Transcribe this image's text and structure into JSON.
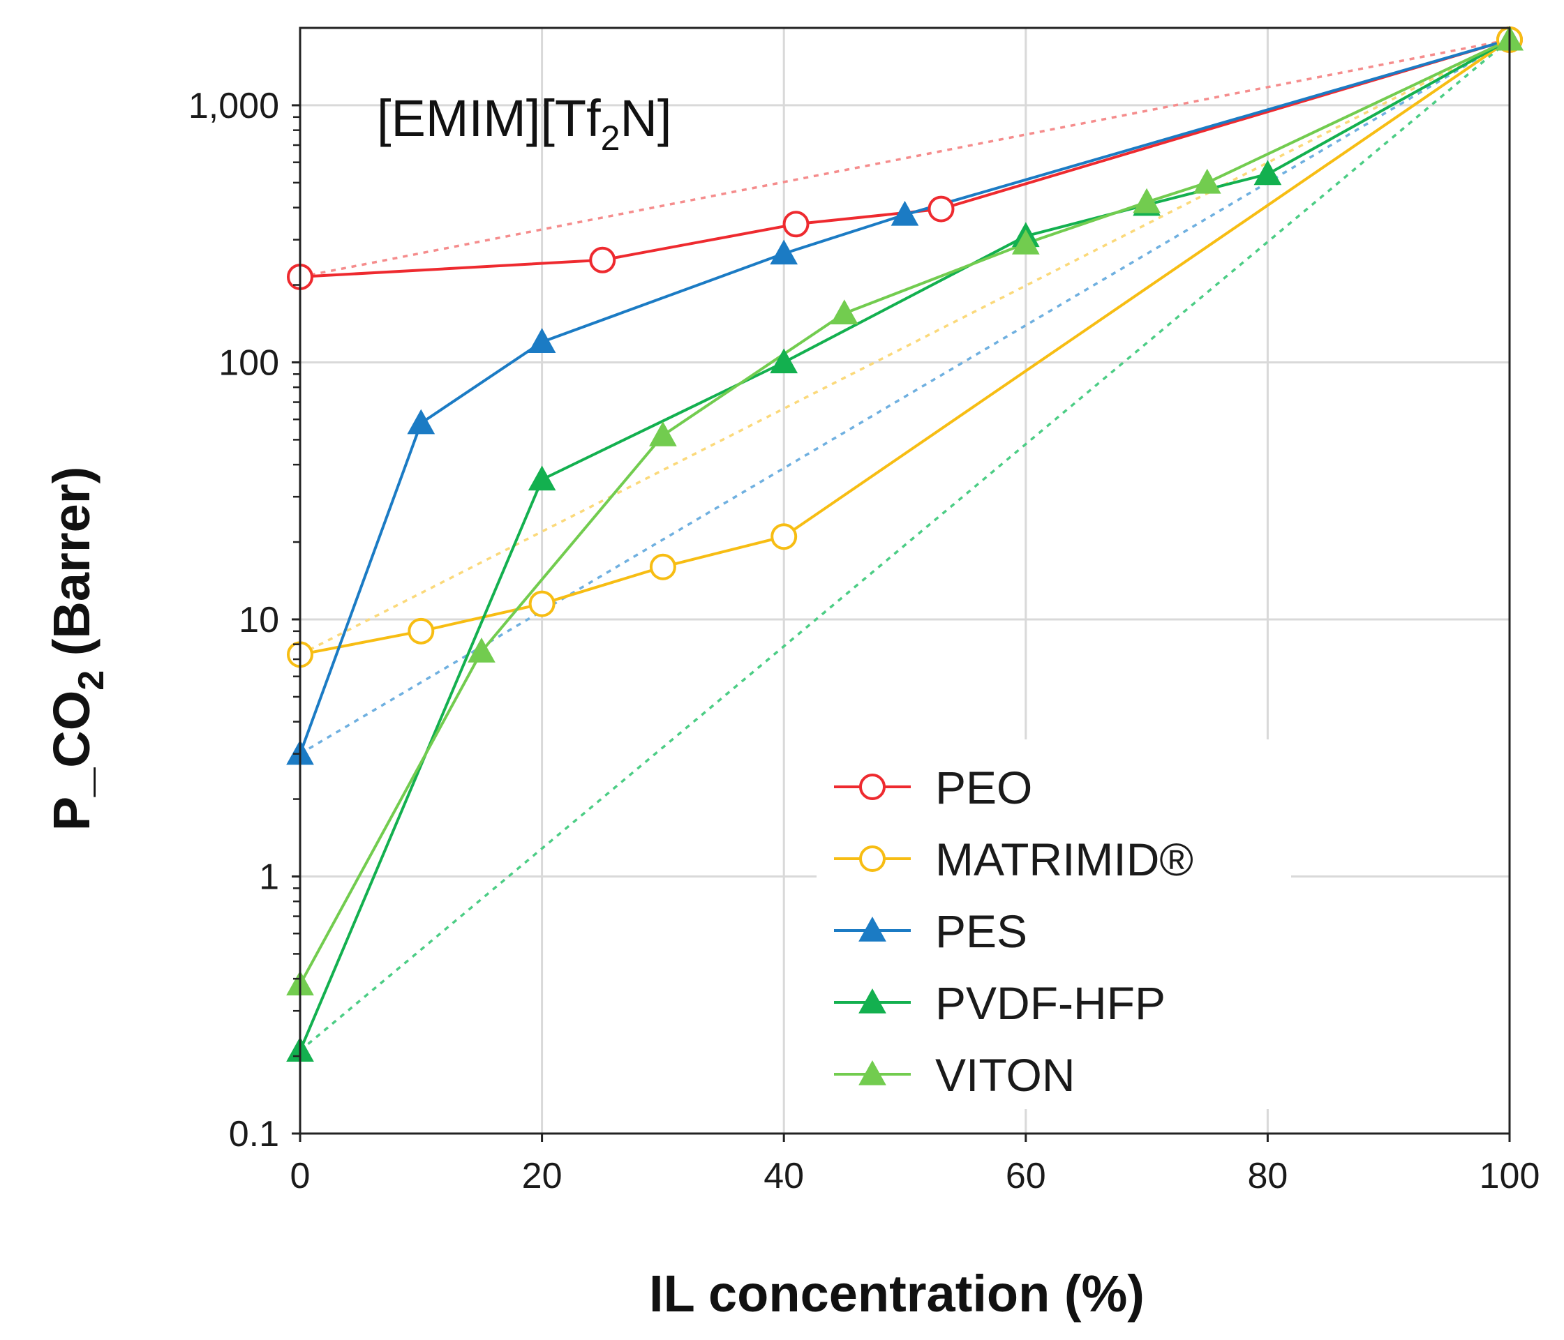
{
  "chart_data": {
    "type": "line",
    "title": "",
    "annotation": {
      "main": "[EMIM][Tf",
      "sub": "2",
      "tail": "N]"
    },
    "xlabel": "IL concentration (%)",
    "ylabel": {
      "main": "P_CO",
      "sub": "2",
      "tail": " (Barrer)"
    },
    "xlim": [
      0,
      100
    ],
    "ylim": [
      0.1,
      2000
    ],
    "yscale": "log",
    "grid": true,
    "legend_position": "bottom-right",
    "x_ticks": [
      0,
      20,
      40,
      60,
      80,
      100
    ],
    "x_tick_labels": [
      "0",
      "20",
      "40",
      "60",
      "80",
      "100"
    ],
    "y_ticks": [
      0.1,
      1,
      10,
      100,
      1000
    ],
    "y_tick_labels": [
      "0.1",
      "1",
      "10",
      "100",
      "1,000"
    ],
    "series": [
      {
        "name": "PEO",
        "color": "#ee2a2f",
        "marker": "open-circle",
        "x": [
          0,
          25,
          41,
          53,
          100
        ],
        "y": [
          215,
          250,
          345,
          395,
          1800
        ]
      },
      {
        "name": "MATRIMID®",
        "color": "#f7bd13",
        "marker": "open-circle",
        "x": [
          0,
          10,
          20,
          30,
          40,
          100
        ],
        "y": [
          7.3,
          9,
          11.5,
          16,
          21,
          1800
        ]
      },
      {
        "name": "PES",
        "color": "#1b7bc4",
        "marker": "filled-triangle",
        "x": [
          0,
          10,
          20,
          40,
          50,
          100
        ],
        "y": [
          3,
          58,
          120,
          265,
          375,
          1800
        ]
      },
      {
        "name": "PVDF-HFP",
        "color": "#13b04f",
        "marker": "filled-triangle",
        "x": [
          0,
          20,
          40,
          60,
          70,
          80,
          100
        ],
        "y": [
          0.21,
          35,
          100,
          310,
          410,
          540,
          1800
        ]
      },
      {
        "name": "VITON",
        "color": "#72cc4f",
        "marker": "filled-triangle",
        "x": [
          0,
          15,
          30,
          45,
          60,
          70,
          75,
          100
        ],
        "y": [
          0.38,
          7.5,
          52,
          155,
          290,
          420,
          500,
          1800
        ]
      }
    ],
    "reference_lines": [
      {
        "series": "PEO",
        "color": "#f58c8c",
        "x": [
          0,
          100
        ],
        "y": [
          215,
          1800
        ]
      },
      {
        "series": "MATRIMID®",
        "color": "#fbd97a",
        "x": [
          0,
          100
        ],
        "y": [
          7.3,
          1800
        ]
      },
      {
        "series": "PES",
        "color": "#6fb0e0",
        "x": [
          0,
          100
        ],
        "y": [
          3,
          1800
        ]
      },
      {
        "series": "PVDF-HFP",
        "color": "#4ccd85",
        "x": [
          0,
          100
        ],
        "y": [
          0.21,
          1800
        ]
      }
    ]
  }
}
